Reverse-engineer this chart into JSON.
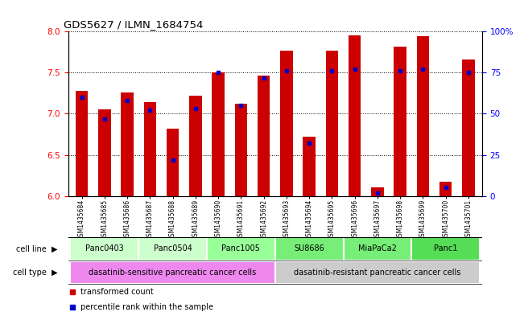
{
  "title": "GDS5627 / ILMN_1684754",
  "samples": [
    "GSM1435684",
    "GSM1435685",
    "GSM1435686",
    "GSM1435687",
    "GSM1435688",
    "GSM1435689",
    "GSM1435690",
    "GSM1435691",
    "GSM1435692",
    "GSM1435693",
    "GSM1435694",
    "GSM1435695",
    "GSM1435696",
    "GSM1435697",
    "GSM1435698",
    "GSM1435699",
    "GSM1435700",
    "GSM1435701"
  ],
  "transformed_counts": [
    7.28,
    7.05,
    7.26,
    7.14,
    6.82,
    7.22,
    7.5,
    7.12,
    7.46,
    7.77,
    6.72,
    7.77,
    7.95,
    6.1,
    7.82,
    7.94,
    6.17,
    7.66
  ],
  "percentile_ranks": [
    60,
    47,
    58,
    52,
    22,
    53,
    75,
    55,
    72,
    76,
    32,
    76,
    77,
    2,
    76,
    77,
    5,
    75
  ],
  "ylim_left": [
    6.0,
    8.0
  ],
  "ylim_right": [
    0,
    100
  ],
  "yticks_left": [
    6.0,
    6.5,
    7.0,
    7.5,
    8.0
  ],
  "yticks_right": [
    0,
    25,
    50,
    75,
    100
  ],
  "ytick_labels_right": [
    "0",
    "25",
    "50",
    "75",
    "100%"
  ],
  "bar_color": "#cc0000",
  "dot_color": "#0000cc",
  "cell_line_groups": [
    {
      "label": "Panc0403",
      "start": 0,
      "end": 2,
      "color": "#ccffcc"
    },
    {
      "label": "Panc0504",
      "start": 3,
      "end": 5,
      "color": "#ccffcc"
    },
    {
      "label": "Panc1005",
      "start": 6,
      "end": 8,
      "color": "#99ff99"
    },
    {
      "label": "SU8686",
      "start": 9,
      "end": 11,
      "color": "#77ee77"
    },
    {
      "label": "MiaPaCa2",
      "start": 12,
      "end": 14,
      "color": "#77ee77"
    },
    {
      "label": "Panc1",
      "start": 15,
      "end": 17,
      "color": "#55dd55"
    }
  ],
  "cell_type_groups": [
    {
      "label": "dasatinib-sensitive pancreatic cancer cells",
      "start": 0,
      "end": 8,
      "color": "#ee88ee"
    },
    {
      "label": "dasatinib-resistant pancreatic cancer cells",
      "start": 9,
      "end": 17,
      "color": "#cccccc"
    }
  ],
  "bar_width": 0.55,
  "base_value": 6.0,
  "legend_items": [
    {
      "color": "#cc0000",
      "label": "transformed count"
    },
    {
      "color": "#0000cc",
      "label": "percentile rank within the sample"
    }
  ]
}
